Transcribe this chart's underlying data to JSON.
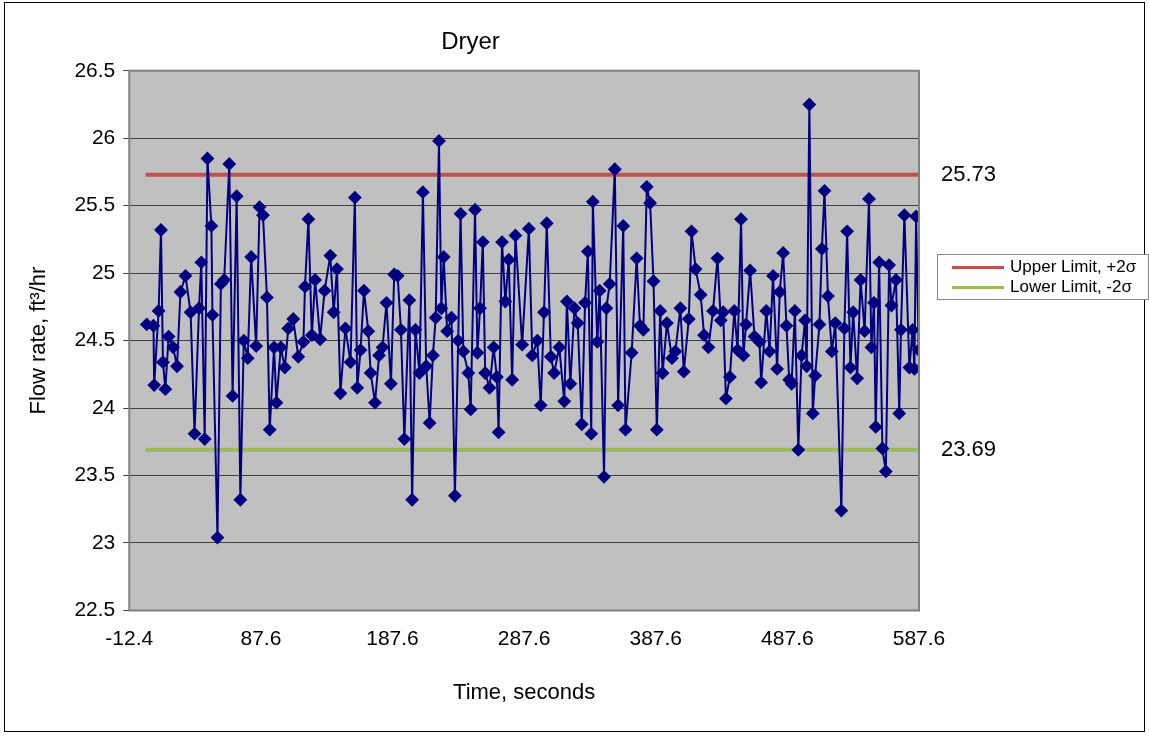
{
  "chart_data": {
    "type": "line",
    "title": "Dryer",
    "xlabel": "Time, seconds",
    "ylabel": "Flow rate, ft³/hr",
    "xlim": [
      -12.4,
      587.6
    ],
    "xticks": [
      -12.4,
      87.6,
      187.6,
      287.6,
      387.6,
      487.6,
      587.6
    ],
    "ylim": [
      22.5,
      26.5
    ],
    "yticks": [
      22.5,
      23,
      23.5,
      24,
      24.5,
      25,
      25.5,
      26,
      26.5
    ],
    "grid": "y",
    "legend": "right",
    "series": [
      {
        "color": "#000080",
        "marker": "diamond",
        "x": [
          0.9,
          6,
          6.5,
          9.9,
          11.7,
          13.2,
          15,
          17.5,
          20.9,
          23.9,
          26.5,
          30.3,
          34.2,
          37.2,
          40.6,
          42.3,
          44.9,
          47,
          50,
          50.8,
          54.6,
          57.2,
          59.7,
          63.6,
          66.1,
          69.2,
          72,
          74.6,
          77.6,
          80.2,
          84,
          86.6,
          89.2,
          92.2,
          94.3,
          97.6,
          99.4,
          102.7,
          105.8,
          108.4,
          112.2,
          116,
          119.9,
          121.1,
          123.7,
          126.3,
          128.8,
          132.6,
          136,
          140.3,
          142.9,
          145.4,
          148,
          151.8,
          155.7,
          159,
          160.8,
          163.3,
          165.9,
          169.2,
          171,
          174.3,
          177.4,
          180,
          183,
          186.4,
          188.9,
          191.5,
          194,
          196.6,
          200.4,
          202.5,
          205,
          208.1,
          210.7,
          213.2,
          215.8,
          218.3,
          220.4,
          222.9,
          224.7,
          226.5,
          229.1,
          232.4,
          235,
          237.5,
          239.3,
          241.4,
          245.2,
          247,
          250.3,
          252.1,
          254.1,
          256.2,
          258,
          261.3,
          264.4,
          266.9,
          268.2,
          270.8,
          273.3,
          275.9,
          278.5,
          281,
          286.1,
          291.2,
          293.8,
          297.6,
          300.2,
          302.7,
          304.8,
          307.9,
          310.4,
          314.3,
          318.1,
          320.1,
          322.7,
          325.8,
          328.3,
          331.4,
          333.9,
          336,
          338.6,
          339.8,
          343.2,
          345,
          348.3,
          350.1,
          352.6,
          356.5,
          359,
          362.9,
          364.6,
          369.3,
          373.1,
          375.6,
          378.2,
          380.8,
          383.3,
          385.9,
          388.4,
          391,
          392.8,
          396.1,
          399.9,
          402.5,
          406.3,
          408.9,
          412.7,
          414.8,
          417.9,
          421.7,
          424.3,
          427.6,
          431.1,
          434.5,
          437,
          438.8,
          440.9,
          443.9,
          447.3,
          449.8,
          452.4,
          454.2,
          456.2,
          459.3,
          462.6,
          466.4,
          467.7,
          471.6,
          474.1,
          476.7,
          479.8,
          481.8,
          484.4,
          486.9,
          489,
          490.8,
          493.3,
          495.9,
          498.4,
          501,
          502.3,
          504.3,
          506.9,
          508.7,
          512,
          513.8,
          515.8,
          518.4,
          521.4,
          524,
          528.6,
          530.9,
          533,
          535.5,
          537.6,
          540.6,
          543.2,
          546.3,
          549.6,
          551.4,
          553.4,
          554.7,
          557.3,
          559.8,
          562.4,
          564.9,
          566.7,
          570.1,
          572.6,
          573.9,
          576.5,
          580.3,
          582.8,
          584.1,
          585.4,
          587.4
        ],
        "values": [
          24.62,
          24.61,
          24.17,
          24.72,
          25.32,
          24.34,
          24.14,
          24.53,
          24.45,
          24.31,
          24.86,
          24.98,
          24.71,
          23.81,
          24.74,
          25.08,
          23.77,
          25.85,
          25.35,
          24.69,
          23.04,
          24.92,
          24.95,
          25.81,
          24.09,
          25.57,
          23.32,
          24.5,
          24.37,
          25.12,
          24.46,
          25.49,
          25.43,
          24.82,
          23.84,
          24.45,
          24.04,
          24.45,
          24.3,
          24.59,
          24.66,
          24.38,
          24.49,
          24.9,
          25.4,
          24.54,
          24.95,
          24.51,
          24.87,
          25.13,
          24.71,
          25.03,
          24.11,
          24.59,
          24.34,
          25.56,
          24.15,
          24.43,
          24.87,
          24.57,
          24.26,
          24.04,
          24.39,
          24.45,
          24.78,
          24.18,
          24.99,
          24.98,
          24.58,
          23.77,
          24.8,
          23.32,
          24.58,
          24.26,
          25.6,
          24.31,
          23.89,
          24.39,
          24.67,
          25.98,
          24.74,
          25.12,
          24.57,
          24.67,
          23.35,
          24.5,
          25.44,
          24.42,
          24.26,
          23.99,
          25.47,
          24.41,
          24.74,
          25.23,
          24.26,
          24.15,
          24.45,
          24.23,
          23.82,
          25.23,
          24.79,
          25.1,
          24.21,
          25.28,
          24.47,
          25.33,
          24.39,
          24.5,
          24.02,
          24.71,
          25.37,
          24.38,
          24.26,
          24.45,
          24.05,
          24.79,
          24.18,
          24.74,
          24.63,
          23.88,
          24.78,
          25.16,
          23.81,
          25.53,
          24.49,
          24.87,
          23.49,
          24.74,
          24.92,
          25.77,
          24.02,
          25.35,
          23.84,
          24.41,
          25.11,
          24.61,
          24.58,
          25.64,
          25.52,
          24.94,
          23.84,
          24.72,
          24.26,
          24.63,
          24.37,
          24.42,
          24.74,
          24.27,
          24.66,
          25.31,
          25.03,
          24.84,
          24.54,
          24.45,
          24.72,
          25.11,
          24.65,
          24.71,
          24.07,
          24.23,
          24.72,
          24.43,
          25.4,
          24.39,
          24.62,
          25.02,
          24.53,
          24.49,
          24.19,
          24.72,
          24.42,
          24.98,
          24.29,
          24.86,
          25.15,
          24.61,
          24.21,
          24.18,
          24.72,
          23.69,
          24.39,
          24.65,
          24.31,
          26.25,
          23.96,
          24.24,
          24.62,
          25.18,
          25.61,
          24.83,
          24.42,
          24.63,
          23.24,
          24.59,
          25.31,
          24.3,
          24.71,
          24.22,
          24.95,
          24.57,
          25.55,
          24.45,
          24.78,
          23.86,
          25.08,
          23.7,
          23.53,
          25.06,
          24.76,
          24.95,
          23.96,
          24.58,
          25.43,
          24.3,
          24.58,
          24.29,
          25.42,
          24.43
        ]
      },
      {
        "name": "Upper Limit, +2σ",
        "color": "#c0504d",
        "marker": "none",
        "x": [
          0,
          587.6
        ],
        "values": [
          25.73,
          25.73
        ],
        "value_labels": [
          null,
          "25.73"
        ]
      },
      {
        "name": "Lower Limit, -2σ",
        "color": "#9bbb59",
        "marker": "none",
        "x": [
          0,
          587.6
        ],
        "values": [
          23.69,
          23.69
        ],
        "value_labels": [
          null,
          "23.69"
        ]
      }
    ]
  }
}
